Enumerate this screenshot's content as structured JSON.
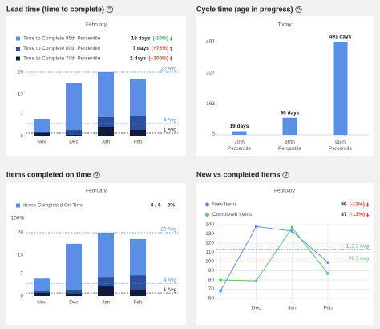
{
  "chart_data": [
    {
      "type": "bar",
      "title": "Lead time (time to complete)",
      "subtitle": "February",
      "categories": [
        "Nov",
        "Dec",
        "Jan",
        "Feb"
      ],
      "series": [
        {
          "name": "Time to Complete 95th Percentile",
          "color": "#5b8fe6",
          "values": [
            5.5,
            16.5,
            20,
            18
          ],
          "summary": "18 days",
          "change": "(-10%)",
          "change_color": "#3aa757",
          "trend": "down"
        },
        {
          "name": "Time to Complete 80th Percentile",
          "color": "#2d4f9e",
          "values": [
            1.5,
            2,
            6,
            6.5
          ],
          "summary": "7 days",
          "change": "(+75%)",
          "change_color": "#e0453a",
          "trend": "up"
        },
        {
          "name": "Time to Complete 70th Percentile",
          "color": "#0f1b3d",
          "values": [
            1,
            0.5,
            3,
            2
          ],
          "summary": "2 days",
          "change": "(+100%)",
          "change_color": "#e0453a",
          "trend": "up"
        }
      ],
      "ylim": [
        0,
        20
      ],
      "yticks": [
        0,
        7,
        13,
        20
      ],
      "reference_lines": [
        {
          "value": 20,
          "label": "20 Avg",
          "color": "#4a90e2"
        },
        {
          "value": 4,
          "label": "4 Avg",
          "color": "#4a90e2"
        },
        {
          "value": 1,
          "label": "1 Avg",
          "color": "#222222"
        }
      ]
    },
    {
      "type": "bar",
      "title": "Cycle time (age in progress)",
      "subtitle": "Today",
      "categories": [
        "70th Percentile",
        "80th Percentile",
        "95th Percentile"
      ],
      "values": [
        19,
        90,
        491
      ],
      "value_labels": [
        "19 days",
        "90 days",
        "491 days"
      ],
      "color": "#5b8fe6",
      "ylim": [
        0,
        491
      ],
      "yticks": [
        0,
        163,
        327,
        491
      ]
    },
    {
      "type": "bar",
      "title": "Items completed on time",
      "subtitle": "February",
      "legend": [
        {
          "name": "Items Completed On Time",
          "color": "#5b8fe6",
          "summary": "0 / 6",
          "change": "0%",
          "change_color": "#222222"
        }
      ],
      "annotations": [
        "100%"
      ],
      "categories": [
        "Nov",
        "Dec",
        "Jan",
        "Feb"
      ],
      "series": [
        {
          "color": "#5b8fe6",
          "values": [
            5.5,
            16.5,
            20,
            18
          ]
        },
        {
          "color": "#2d4f9e",
          "values": [
            1.5,
            2,
            6,
            6.5
          ]
        },
        {
          "color": "#0f1b3d",
          "values": [
            1,
            0.5,
            3,
            2
          ]
        }
      ],
      "ylim": [
        0,
        20
      ],
      "yticks": [
        0,
        7,
        13,
        20
      ],
      "reference_lines": [
        {
          "value": 20,
          "label": "20 Avg",
          "color": "#4a90e2"
        },
        {
          "value": 4,
          "label": "4 Avg",
          "color": "#4a90e2"
        },
        {
          "value": 1,
          "label": "1 Avg",
          "color": "#222222"
        }
      ]
    },
    {
      "type": "line",
      "title": "New vs completed items",
      "subtitle": "February",
      "categories": [
        null,
        "Dec",
        "Jan",
        "Feb"
      ],
      "series": [
        {
          "name": "New Items",
          "color": "#5b8fe6",
          "values": [
            68,
            138,
            133,
            99
          ],
          "summary": "99",
          "change": "(-13%)",
          "change_color": "#e0453a",
          "trend": "down"
        },
        {
          "name": "Completed Items",
          "color": "#5cc46e",
          "values": [
            80,
            79,
            137,
            87
          ],
          "summary": "87",
          "change": "(-13%)",
          "change_color": "#e0453a",
          "trend": "down"
        }
      ],
      "ylim": [
        60,
        140
      ],
      "yticks": [
        60,
        70,
        80,
        90,
        100,
        110,
        120,
        130,
        140
      ],
      "grid": true,
      "reference_lines": [
        {
          "value": 113.3,
          "label": "113.3 Avg",
          "color": "#4a90e2"
        },
        {
          "value": 99.7,
          "label": "99.7 Avg",
          "color": "#5cc46e"
        }
      ]
    }
  ]
}
